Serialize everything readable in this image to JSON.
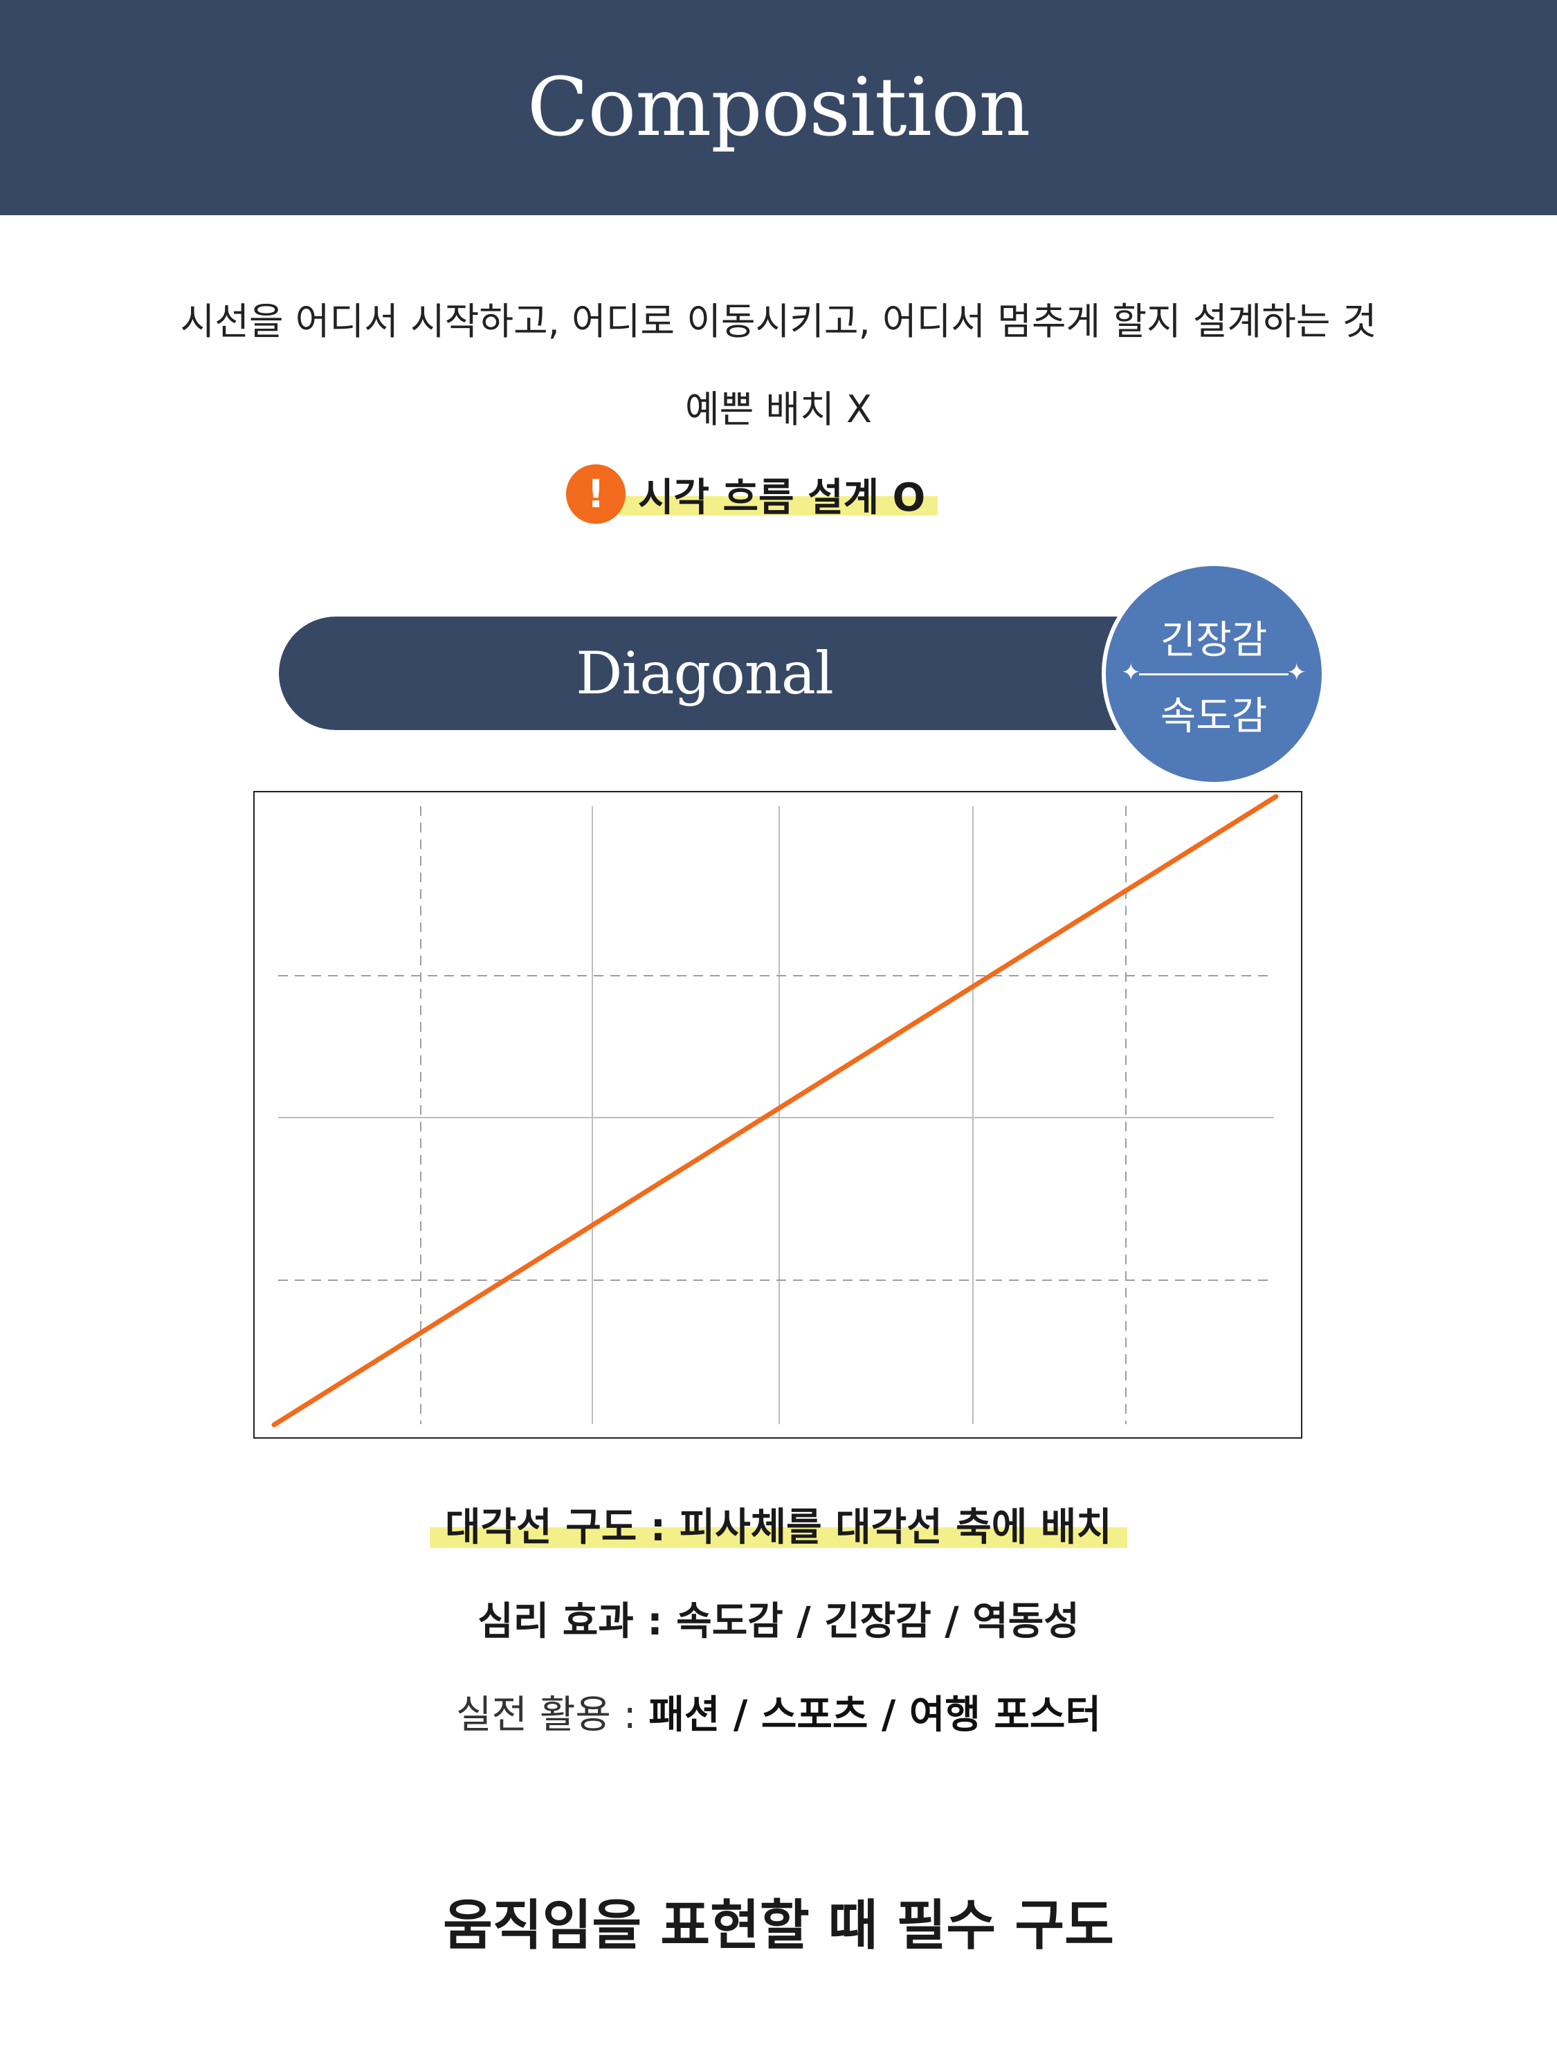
{
  "header": {
    "title": "Composition"
  },
  "intro": {
    "definition": "시선을 어디서 시작하고, 어디로 이동시키고, 어디서 멈추게 할지 설계하는 것",
    "not_text": "예쁜 배치 X",
    "flow_icon": "!",
    "flow_text": "시각 흐름 설계 O"
  },
  "section": {
    "title": "Diagonal",
    "badge_top": "긴장감",
    "badge_bottom": "속도감",
    "badge_star": "✦"
  },
  "diagram": {
    "line_color": "#f26a1b",
    "grid_color": "#bdbdbd",
    "dashed_color": "#9e9e9e",
    "frame_color": "#222222",
    "diagonal": {
      "start": [
        0,
        0
      ],
      "end": [
        1,
        1
      ]
    }
  },
  "labels": {
    "composition": "대각선 구도 : 피사체를 대각선 축에 배치",
    "effect": "심리 효과 : 속도감 / 긴장감 / 역동성",
    "usage_prefix": "실전 활용 : ",
    "usage_items": "패션 / 스포츠 / 여행 포스터"
  },
  "footer": {
    "text": "움직임을 표현할 때 필수 구도"
  },
  "colors": {
    "navy": "#374865",
    "badge_blue": "#5079b7",
    "orange": "#f26a1b",
    "highlight": "#f3f08a"
  }
}
